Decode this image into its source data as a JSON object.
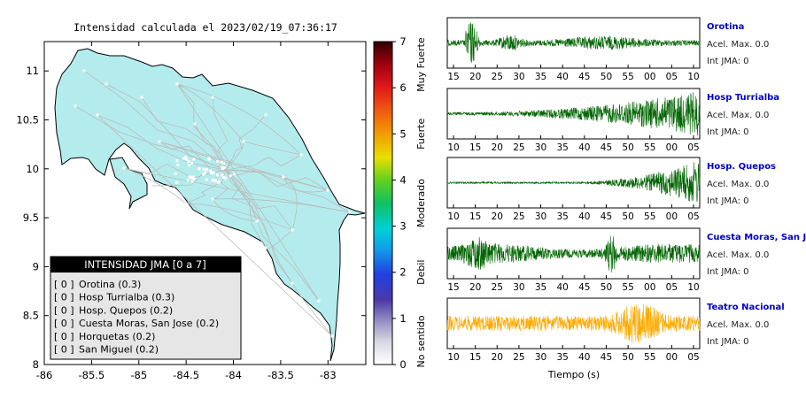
{
  "map": {
    "title": "Intensidad calculada el 2023/02/19_07:36:17",
    "xticks": [
      "-86",
      "-85.5",
      "-85",
      "-84.5",
      "-84",
      "-83.5",
      "-83"
    ],
    "yticks": [
      "11",
      "10.5",
      "10",
      "9.5",
      "9",
      "8.5",
      "8"
    ],
    "xlim": [
      -86,
      -82.6
    ],
    "ylim": [
      8,
      11.3
    ],
    "land_color": "#b4eced"
  },
  "legend": {
    "title": "INTENSIDAD JMA [0 a 7]",
    "items": [
      {
        "level": "[ 0 ]",
        "name": "Orotina (0.3)"
      },
      {
        "level": "[ 0 ]",
        "name": "Hosp Turrialba (0.3)"
      },
      {
        "level": "[ 0 ]",
        "name": "Hosp. Quepos (0.2)"
      },
      {
        "level": "[ 0 ]",
        "name": "Cuesta Moras, San Jose (0.2)"
      },
      {
        "level": "[ 0 ]",
        "name": "Horquetas (0.2)"
      },
      {
        "level": "[ 0 ]",
        "name": "San Miguel (0.2)"
      }
    ]
  },
  "colorbar": {
    "ticks": [
      "0",
      "1",
      "2",
      "3",
      "4",
      "5",
      "6",
      "7"
    ],
    "labels": [
      "No sentido",
      "Debil",
      "Moderado",
      "Fuerte",
      "Muy Fuerte"
    ]
  },
  "traces": [
    {
      "station": "Orotina",
      "acel": "Acel. Max. 0.0",
      "int": "Int JMA: 0",
      "color": "#006400",
      "profile": "early",
      "ticks": [
        "15",
        "20",
        "25",
        "30",
        "35",
        "40",
        "45",
        "50",
        "55",
        "00",
        "05",
        "10"
      ]
    },
    {
      "station": "Hosp Turrialba",
      "acel": "Acel. Max. 0.0",
      "int": "Int JMA: 0",
      "color": "#006400",
      "profile": "rising",
      "ticks": [
        "10",
        "15",
        "20",
        "25",
        "30",
        "35",
        "40",
        "45",
        "50",
        "55",
        "00",
        "05"
      ]
    },
    {
      "station": "Hosp. Quepos",
      "acel": "Acel. Max. 0.0",
      "int": "Int JMA: 0",
      "color": "#006400",
      "profile": "late",
      "ticks": [
        "10",
        "15",
        "20",
        "25",
        "30",
        "35",
        "40",
        "45",
        "50",
        "55",
        "00",
        "05"
      ]
    },
    {
      "station": "Cuesta Moras, San Jose",
      "acel": "Acel. Max. 0.0",
      "int": "Int JMA: 0",
      "color": "#006400",
      "profile": "steady",
      "ticks": [
        "15",
        "20",
        "25",
        "30",
        "35",
        "40",
        "45",
        "50",
        "55",
        "00",
        "05",
        "10"
      ]
    },
    {
      "station": "Teatro Nacional",
      "acel": "Acel. Max. 0.0",
      "int": "Int JMA: 0",
      "color": "#ffaa00",
      "profile": "center",
      "ticks": [
        "10",
        "15",
        "20",
        "25",
        "30",
        "35",
        "40",
        "45",
        "50",
        "55",
        "00",
        "05"
      ]
    }
  ],
  "xlabel": "Tiempo (s)",
  "chart_data": {
    "type": "line",
    "title": "Intensidad calculada el 2023/02/19_07:36:17",
    "xlabel": "Tiempo (s)",
    "series": [
      {
        "name": "Orotina",
        "values": [
          0.0
        ]
      },
      {
        "name": "Hosp Turrialba",
        "values": [
          0.0
        ]
      },
      {
        "name": "Hosp. Quepos",
        "values": [
          0.0
        ]
      },
      {
        "name": "Cuesta Moras, San Jose",
        "values": [
          0.0
        ]
      },
      {
        "name": "Teatro Nacional",
        "values": [
          0.0
        ]
      }
    ]
  }
}
